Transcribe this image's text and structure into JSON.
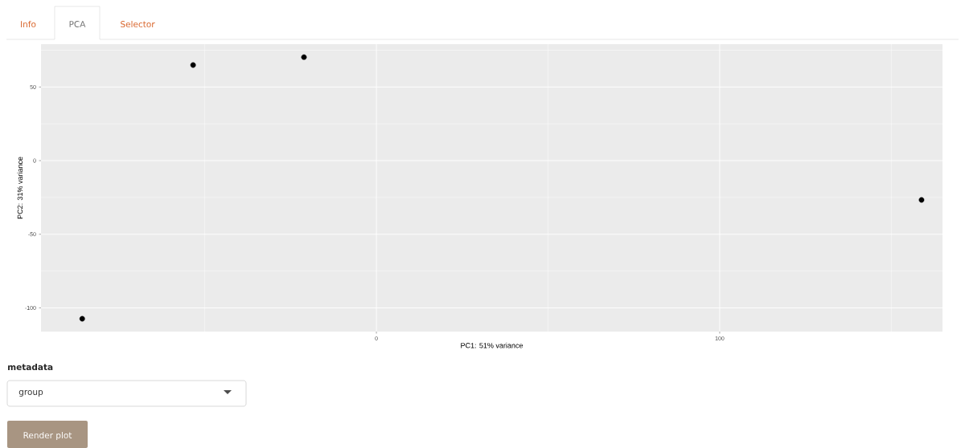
{
  "chart_data": {
    "type": "scatter",
    "xlabel": "PC1: 51% variance",
    "ylabel": "PC2: 31% variance",
    "x": [
      -85.7,
      -53.4,
      -21.1,
      158.8
    ],
    "values": [
      -107.4,
      64.9,
      70.3,
      -26.7
    ],
    "color": "#000000",
    "grid": true,
    "xlim": [
      -97.7,
      164.9
    ],
    "ylim": [
      -116.1,
      79.1
    ],
    "xticks": [
      0,
      100
    ],
    "yticks": [
      -100,
      -50,
      0,
      50
    ],
    "annotations": [
      "Info",
      "PCA",
      "Selector",
      "metadata",
      "group",
      "Render plot"
    ]
  }
}
